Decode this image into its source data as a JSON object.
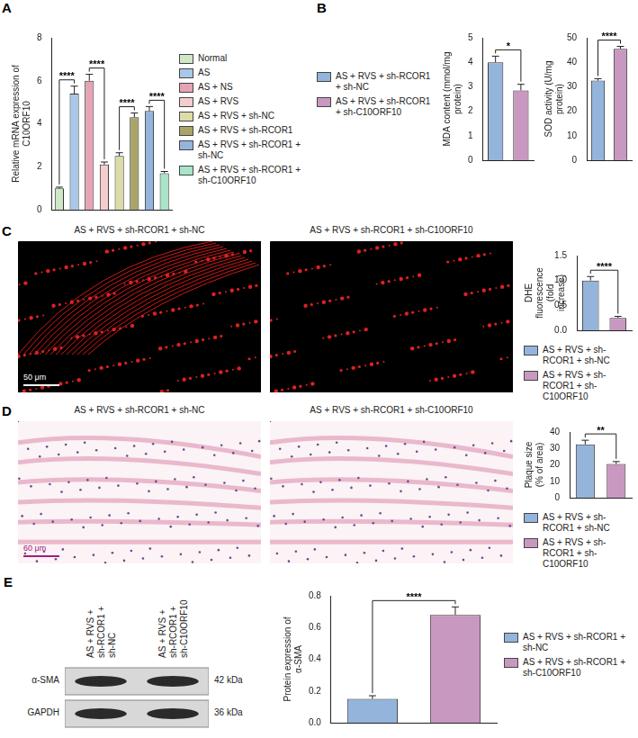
{
  "chart_data": [
    {
      "type": "bar",
      "panel": "A",
      "categories": [
        "Normal",
        "AS",
        "AS + NS",
        "AS + RVS",
        "AS + RVS + sh-NC",
        "AS + RVS + sh-RCOR1",
        "AS + RVS + sh-RCOR1 + sh-NC",
        "AS + RVS + sh-RCOR1 + sh-C10ORF10"
      ],
      "values": [
        1.0,
        5.4,
        6.0,
        2.1,
        2.5,
        4.3,
        4.6,
        1.7
      ],
      "errors": [
        0.05,
        0.35,
        0.3,
        0.12,
        0.15,
        0.2,
        0.2,
        0.08
      ],
      "colors": [
        "#cfe8c8",
        "#a8c8e8",
        "#e4a4b4",
        "#f4cccc",
        "#dcdca8",
        "#aaa468",
        "#94b4dc",
        "#a8e4c8"
      ],
      "y_label": "Relative mRNA expression of C10ORF10",
      "ylim": [
        0,
        8
      ],
      "yticks": [
        0,
        2,
        4,
        6,
        8
      ],
      "grid": false,
      "tick_labels": "y",
      "legend": "right",
      "significance": [
        {
          "pair": [
            0,
            1
          ],
          "label": "****"
        },
        {
          "pair": [
            2,
            3
          ],
          "label": "****"
        },
        {
          "pair": [
            4,
            5
          ],
          "label": "****"
        },
        {
          "pair": [
            6,
            7
          ],
          "label": "****"
        }
      ]
    },
    {
      "type": "bar",
      "panel": "B",
      "categories": [
        "AS + RVS + sh-RCOR1 + sh-NC",
        "AS + RVS + sh-RCOR1 + sh-C10ORF10"
      ],
      "values": [
        4.0,
        2.85
      ],
      "errors": [
        0.25,
        0.25
      ],
      "colors": [
        "#94b4dc",
        "#c898c0"
      ],
      "y_label": "MDA content (mmol/mg protein)",
      "ylim": [
        0,
        5
      ],
      "yticks": [
        0,
        1,
        2,
        3,
        4,
        5
      ],
      "grid": false,
      "tick_labels": "y",
      "legend": "left",
      "significance": [
        {
          "pair": [
            0,
            1
          ],
          "label": "*"
        }
      ]
    },
    {
      "type": "bar",
      "categories": [
        "AS + RVS + sh-RCOR1 + sh-NC",
        "AS + RVS + sh-RCOR1 + sh-C10ORF10"
      ],
      "values": [
        32.5,
        45.5
      ],
      "errors": [
        0.8,
        1.0
      ],
      "colors": [
        "#94b4dc",
        "#c898c0"
      ],
      "y_label": "SOD activity (U/mg protein)",
      "ylim": [
        0,
        50
      ],
      "yticks": [
        0,
        10,
        20,
        30,
        40,
        50
      ],
      "grid": false,
      "tick_labels": "y",
      "significance": [
        {
          "pair": [
            0,
            1
          ],
          "label": "****"
        }
      ]
    },
    {
      "type": "bar",
      "categories": [
        "AS + RVS + sh-RCOR1 + sh-NC",
        "AS + RVS + sh-RCOR1 + sh-C10ORF10"
      ],
      "values": [
        1.0,
        0.25
      ],
      "errors": [
        0.08,
        0.03
      ],
      "colors": [
        "#94b4dc",
        "#c898c0"
      ],
      "y_label": "DHE fluorescence (fold increase)",
      "ylim": [
        0,
        1.5
      ],
      "yticks": [
        {
          "value": 0,
          "label": "0.0"
        },
        0.5,
        {
          "value": 1,
          "label": "1.0"
        },
        1.5
      ],
      "grid": false,
      "tick_labels": "y",
      "legend": "bottom",
      "significance": [
        {
          "pair": [
            0,
            1
          ],
          "label": "****"
        }
      ]
    },
    {
      "type": "bar",
      "categories": [
        "AS + RVS + sh-RCOR1 + sh-NC",
        "AS + RVS + sh-RCOR1 + sh-C10ORF10"
      ],
      "values": [
        32.5,
        20.5
      ],
      "errors": [
        2.5,
        1.5
      ],
      "colors": [
        "#94b4dc",
        "#c898c0"
      ],
      "y_label": "Plaque size (% of area)",
      "ylim": [
        0,
        40
      ],
      "yticks": [
        0,
        10,
        20,
        30,
        40
      ],
      "grid": false,
      "tick_labels": "y",
      "legend": "bottom",
      "significance": [
        {
          "pair": [
            0,
            1
          ],
          "label": "**"
        }
      ]
    },
    {
      "type": "bar",
      "categories": [
        "AS + RVS + sh-RCOR1 + sh-NC",
        "AS + RVS + sh-RCOR1 + sh-C10ORF10"
      ],
      "values": [
        0.15,
        0.68
      ],
      "errors": [
        0.02,
        0.05
      ],
      "colors": [
        "#94b4dc",
        "#c898c0"
      ],
      "y_label": "Protein expression of α-SMA",
      "ylim": [
        0,
        0.8
      ],
      "yticks": [
        {
          "value": 0,
          "label": "0.0"
        },
        0.2,
        0.4,
        0.6,
        0.8
      ],
      "grid": false,
      "tick_labels": "y",
      "legend": "right",
      "significance": [
        {
          "pair": [
            0,
            1
          ],
          "label": "****"
        }
      ]
    }
  ],
  "images": [
    {
      "panel": "C",
      "titles": [
        "AS + RVS + sh-RCOR1 + sh-NC",
        "AS + RVS + sh-RCOR1 + sh-C10ORF10"
      ],
      "scale_bar": "50 μm"
    },
    {
      "panel": "D",
      "titles": [
        "AS + RVS + sh-RCOR1 + sh-NC",
        "AS + RVS + sh-RCOR1 + sh-C10ORF10"
      ],
      "scale_bar": "60 μm"
    },
    {
      "panel": "E",
      "lanes": [
        "AS + RVS + sh-RCOR1 + sh-NC",
        "AS + RVS + sh-RCOR1 + sh-C10ORF10"
      ],
      "bands": [
        {
          "label": "α-SMA",
          "size": "42 kDa"
        },
        {
          "label": "GAPDH",
          "size": "36 kDa"
        }
      ]
    }
  ]
}
